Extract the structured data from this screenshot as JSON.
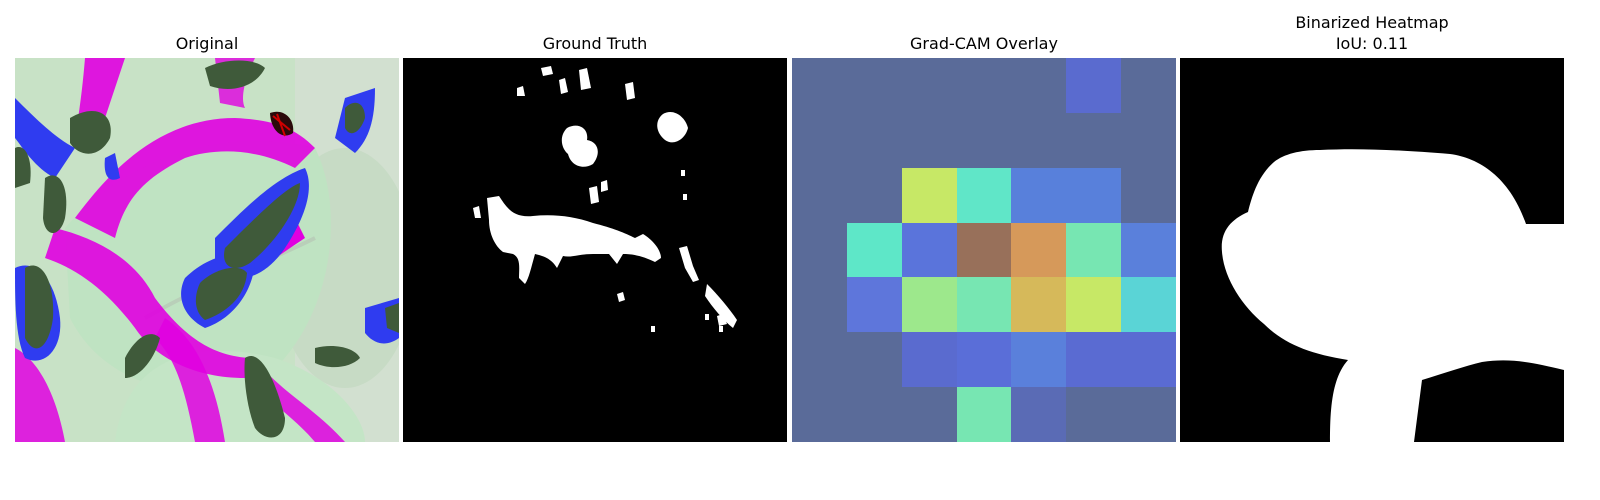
{
  "panels": [
    {
      "id": "original",
      "title": "Original"
    },
    {
      "id": "ground_truth",
      "title": "Ground Truth"
    },
    {
      "id": "gradcam_overlay",
      "title": "Grad-CAM Overlay"
    },
    {
      "id": "binarized_heatmap",
      "title": "Binarized Heatmap",
      "subtitle": "IoU: 0.11"
    }
  ],
  "colors": {
    "mask_foreground": "#ffffff",
    "mask_background": "#000000",
    "leaf_tint": "#cfe6cc",
    "magenta": "#e000e0",
    "blue": "#2f3cf0",
    "dark_lesion": "#3f5a3a"
  },
  "gradcam_grid": [
    [
      "#5a6b99",
      "#5a6b99",
      "#5a6b99",
      "#5a6b99",
      "#5a6b99",
      "#5a6bcf",
      "#5a6b99"
    ],
    [
      "#5a6b99",
      "#5a6b99",
      "#5a6b99",
      "#5a6b99",
      "#5a6b99",
      "#5a6b99",
      "#5a6b99"
    ],
    [
      "#5a6b99",
      "#5a6b99",
      "#c7e866",
      "#60e6c8",
      "#5880db",
      "#5880db",
      "#5a6b99"
    ],
    [
      "#5a6b99",
      "#5ee7c8",
      "#5a74db",
      "#98705a",
      "#d6995a",
      "#77e6b2",
      "#5a80db"
    ],
    [
      "#5a6b99",
      "#5e76db",
      "#9de88c",
      "#77e6b2",
      "#d6b95a",
      "#c7e866",
      "#5ad4d6"
    ],
    [
      "#5a6b99",
      "#5a6b99",
      "#5a6bcf",
      "#5a6ed8",
      "#5a80db",
      "#5a6bd2",
      "#5a6bd2"
    ],
    [
      "#5a6b99",
      "#5a6b99",
      "#5a6b99",
      "#77e6b2",
      "#5a6bb5",
      "#5a6b99",
      "#5a6b99"
    ]
  ]
}
